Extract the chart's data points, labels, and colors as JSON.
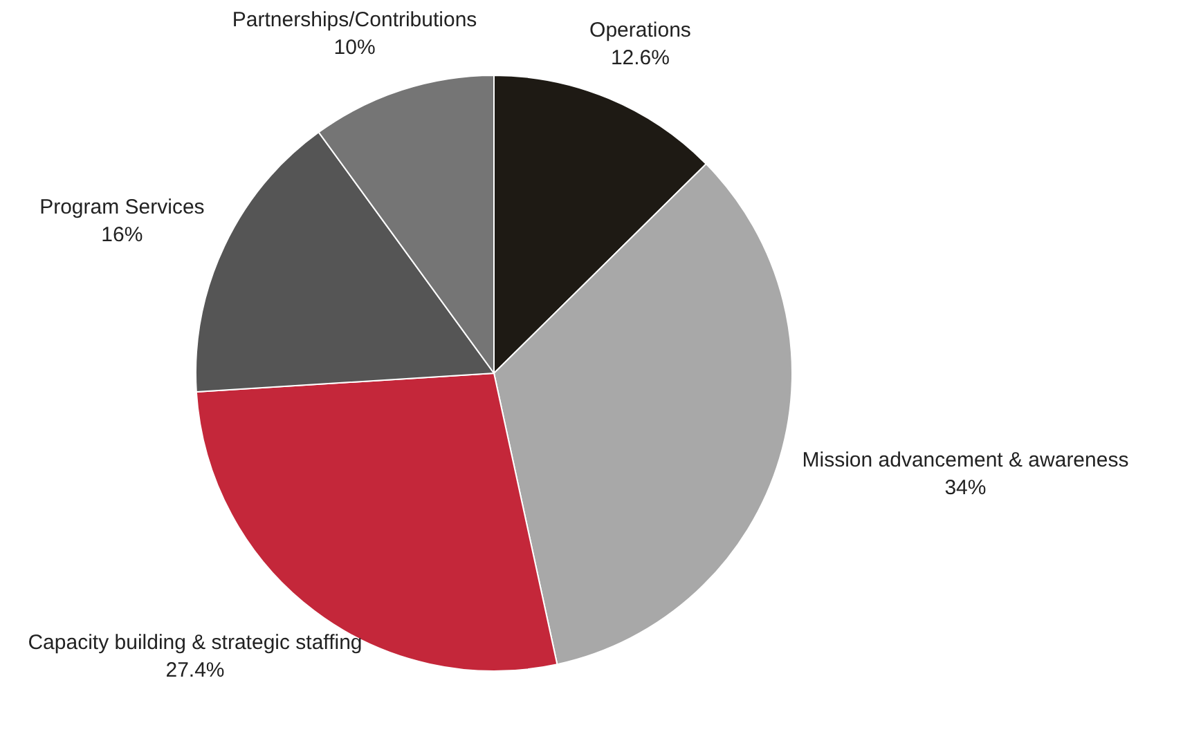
{
  "chart_data": {
    "type": "pie",
    "categories": [
      "Operations",
      "Mission advancement & awareness",
      "Capacity building & strategic staffing",
      "Program Services",
      "Partnerships/Contributions"
    ],
    "values": [
      12.6,
      34,
      27.4,
      16,
      10
    ],
    "colors": [
      "#1e1a14",
      "#a8a8a8",
      "#c4273a",
      "#555555",
      "#757575"
    ],
    "value_labels": [
      "12.6%",
      "34%",
      "27.4%",
      "16%",
      "10%"
    ],
    "legend": false
  }
}
